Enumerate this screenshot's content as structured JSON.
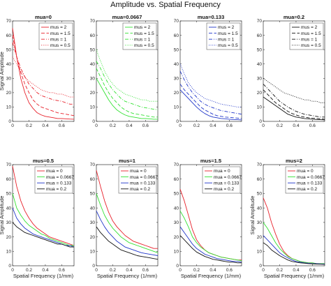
{
  "figure_title": "Amplitude vs. Spatial Frequency",
  "colors": {
    "red": "#e8202a",
    "green": "#33e233",
    "blue": "#1f35c9",
    "black": "#111111"
  },
  "chart_data": [
    {
      "type": "line",
      "title": "mua=0",
      "xlabel": "",
      "ylabel": "Signal Amplitude",
      "xlim": [
        0,
        0.75
      ],
      "ylim": [
        0,
        70
      ],
      "xticks": [
        0,
        0.2,
        0.4,
        0.6
      ],
      "yticks": [
        0,
        10,
        20,
        30,
        40,
        50,
        60,
        70
      ],
      "legend_position": "top-right",
      "x": [
        0,
        0.05,
        0.1,
        0.15,
        0.2,
        0.25,
        0.3,
        0.35,
        0.4,
        0.45,
        0.5,
        0.55,
        0.6,
        0.65,
        0.7,
        0.75
      ],
      "series": [
        {
          "name": "mus = 2",
          "color": "red",
          "dash": "solid",
          "values": [
            65,
            45,
            30,
            20,
            13,
            9,
            6,
            4.5,
            3.5,
            3,
            2.5,
            2,
            2,
            1.8,
            1.6,
            1.5
          ]
        },
        {
          "name": "mus = 1.5",
          "color": "red",
          "dash": "dashed",
          "values": [
            60,
            45,
            34,
            26,
            20,
            15,
            12,
            10,
            9,
            8,
            7,
            6,
            5.5,
            5,
            4.5,
            4
          ]
        },
        {
          "name": "mus = 1",
          "color": "red",
          "dash": "dashdot",
          "values": [
            55,
            45,
            37,
            31,
            26,
            23,
            20,
            18,
            17,
            16,
            15,
            14.5,
            14,
            13,
            12,
            12
          ]
        },
        {
          "name": "mus = 0.5",
          "color": "red",
          "dash": "dotted",
          "values": [
            45,
            40,
            35,
            31,
            28,
            26,
            24,
            22,
            21,
            20,
            20,
            19,
            19,
            18,
            17,
            17
          ]
        }
      ]
    },
    {
      "type": "line",
      "title": "mua=0.0667",
      "xlabel": "",
      "ylabel": "",
      "xlim": [
        0,
        0.75
      ],
      "ylim": [
        0,
        70
      ],
      "xticks": [
        0,
        0.2,
        0.4,
        0.6
      ],
      "yticks": [
        0,
        10,
        20,
        30,
        40,
        50,
        60,
        70
      ],
      "legend_position": "top-right",
      "x": [
        0,
        0.05,
        0.1,
        0.15,
        0.2,
        0.25,
        0.3,
        0.35,
        0.4,
        0.45,
        0.5,
        0.55,
        0.6,
        0.65,
        0.7,
        0.75
      ],
      "series": [
        {
          "name": "mus = 2",
          "color": "green",
          "dash": "solid",
          "values": [
            30,
            25,
            20,
            15,
            11,
            8,
            6,
            4.5,
            3.5,
            3,
            2.5,
            2,
            2,
            1.8,
            1.5,
            1.5
          ]
        },
        {
          "name": "mus = 1.5",
          "color": "green",
          "dash": "dashed",
          "values": [
            37,
            31,
            25,
            20,
            16,
            13,
            10,
            8,
            6.5,
            5.5,
            5,
            4.5,
            4,
            3.5,
            3,
            3
          ]
        },
        {
          "name": "mus = 1",
          "color": "green",
          "dash": "dashdot",
          "values": [
            42,
            37,
            31,
            26,
            22,
            19,
            16,
            14,
            13,
            12,
            11,
            10,
            9.5,
            9,
            8.5,
            8
          ]
        },
        {
          "name": "mus = 0.5",
          "color": "green",
          "dash": "dotted",
          "values": [
            50,
            42,
            35,
            30,
            26,
            23,
            21,
            19,
            18,
            17,
            16,
            15,
            15,
            14,
            14,
            14
          ]
        }
      ]
    },
    {
      "type": "line",
      "title": "mua=0.133",
      "xlabel": "",
      "ylabel": "",
      "xlim": [
        0,
        0.75
      ],
      "ylim": [
        0,
        70
      ],
      "xticks": [
        0,
        0.2,
        0.4,
        0.6
      ],
      "yticks": [
        0,
        10,
        20,
        30,
        40,
        50,
        60,
        70
      ],
      "legend_position": "top-right",
      "x": [
        0,
        0.05,
        0.1,
        0.15,
        0.2,
        0.25,
        0.3,
        0.35,
        0.4,
        0.45,
        0.5,
        0.55,
        0.6,
        0.65,
        0.7,
        0.75
      ],
      "series": [
        {
          "name": "mus = 2",
          "color": "blue",
          "dash": "solid",
          "values": [
            22,
            19,
            16,
            13,
            10,
            7.5,
            5.5,
            4,
            3,
            2.5,
            2,
            1.8,
            1.5,
            1.3,
            1.2,
            1
          ]
        },
        {
          "name": "mus = 1.5",
          "color": "blue",
          "dash": "dashed",
          "values": [
            26,
            22,
            19,
            16,
            13,
            10,
            8,
            6.5,
            5,
            4,
            3.5,
            3,
            2.8,
            2.5,
            2.3,
            2
          ]
        },
        {
          "name": "mus = 1",
          "color": "blue",
          "dash": "dashdot",
          "values": [
            35,
            29,
            24,
            20,
            17,
            14,
            12,
            10.5,
            9.5,
            8.5,
            7.5,
            7,
            6.5,
            6,
            5.5,
            5
          ]
        },
        {
          "name": "mus = 0.5",
          "color": "blue",
          "dash": "dotted",
          "values": [
            40,
            33,
            27,
            23,
            20,
            18,
            16,
            15,
            14,
            13,
            12,
            11.5,
            11,
            10.5,
            10,
            10
          ]
        }
      ]
    },
    {
      "type": "line",
      "title": "mua=0.2",
      "xlabel": "",
      "ylabel": "",
      "xlim": [
        0,
        0.75
      ],
      "ylim": [
        0,
        70
      ],
      "xticks": [
        0,
        0.2,
        0.4,
        0.6
      ],
      "yticks": [
        0,
        10,
        20,
        30,
        40,
        50,
        60,
        70
      ],
      "legend_position": "top-right",
      "x": [
        0,
        0.05,
        0.1,
        0.15,
        0.2,
        0.25,
        0.3,
        0.35,
        0.4,
        0.45,
        0.5,
        0.55,
        0.6,
        0.65,
        0.7,
        0.75
      ],
      "series": [
        {
          "name": "mus = 2",
          "color": "black",
          "dash": "solid",
          "values": [
            17,
            15,
            13,
            11,
            9,
            7,
            5,
            4,
            3,
            2.5,
            2,
            1.8,
            1.5,
            1.3,
            1.2,
            1
          ]
        },
        {
          "name": "mus = 1.5",
          "color": "black",
          "dash": "dashed",
          "values": [
            22,
            19,
            16,
            13,
            11,
            9,
            7,
            5.5,
            4.5,
            3.5,
            3,
            2.5,
            2.2,
            2,
            1.8,
            1.5
          ]
        },
        {
          "name": "mus = 1",
          "color": "black",
          "dash": "dashdot",
          "values": [
            26,
            23,
            20,
            17,
            14,
            12,
            10,
            8.5,
            7,
            6,
            5,
            4.5,
            4,
            3.5,
            3,
            3
          ]
        },
        {
          "name": "mus = 0.5",
          "color": "black",
          "dash": "dotted",
          "values": [
            30,
            28,
            26,
            24,
            22,
            20,
            19,
            18,
            17,
            16,
            15,
            15,
            14,
            14,
            13,
            13
          ]
        }
      ]
    },
    {
      "type": "line",
      "title": "mus=0.5",
      "xlabel": "Spatial Frequency (1/mm)",
      "ylabel": "Signal Amplitude",
      "xlim": [
        0,
        0.75
      ],
      "ylim": [
        0,
        70
      ],
      "xticks": [
        0,
        0.2,
        0.4,
        0.6
      ],
      "yticks": [
        0,
        10,
        20,
        30,
        40,
        50,
        60,
        70
      ],
      "legend_position": "top-right",
      "x": [
        0,
        0.05,
        0.1,
        0.15,
        0.2,
        0.25,
        0.3,
        0.35,
        0.4,
        0.45,
        0.5,
        0.55,
        0.6,
        0.65,
        0.7,
        0.75
      ],
      "series": [
        {
          "name": "mua = 0",
          "color": "red",
          "dash": "solid",
          "values": [
            69,
            55,
            45,
            38,
            33,
            29,
            26,
            24,
            22,
            20,
            19,
            18,
            17,
            16,
            15,
            14
          ]
        },
        {
          "name": "mua = 0.0667",
          "color": "green",
          "dash": "solid",
          "values": [
            50,
            40,
            35,
            31,
            28,
            26,
            24,
            22,
            21,
            19,
            18,
            17,
            16,
            15,
            14,
            14
          ]
        },
        {
          "name": "mua = 0.133",
          "color": "blue",
          "dash": "solid",
          "values": [
            40,
            33,
            29,
            26,
            24,
            22,
            21,
            20,
            19,
            18,
            17,
            16,
            15,
            14,
            14,
            13
          ]
        },
        {
          "name": "mua = 0.2",
          "color": "black",
          "dash": "solid",
          "values": [
            30,
            27,
            25,
            23,
            22,
            21,
            20,
            19,
            18,
            17,
            16,
            15,
            15,
            14,
            13,
            13
          ]
        }
      ]
    },
    {
      "type": "line",
      "title": "mus=1",
      "xlabel": "Spatial Frequency (1/mm)",
      "ylabel": "",
      "xlim": [
        0,
        0.75
      ],
      "ylim": [
        0,
        70
      ],
      "xticks": [
        0,
        0.2,
        0.4,
        0.6
      ],
      "yticks": [
        0,
        10,
        20,
        30,
        40,
        50,
        60,
        70
      ],
      "legend_position": "top-right",
      "x": [
        0,
        0.05,
        0.1,
        0.15,
        0.2,
        0.25,
        0.3,
        0.35,
        0.4,
        0.45,
        0.5,
        0.55,
        0.6,
        0.65,
        0.7,
        0.75
      ],
      "series": [
        {
          "name": "mua = 0",
          "color": "red",
          "dash": "solid",
          "values": [
            66,
            55,
            45,
            37,
            31,
            27,
            24,
            21,
            19,
            17,
            16,
            15,
            14,
            13,
            12,
            12
          ]
        },
        {
          "name": "mua = 0.0667",
          "color": "green",
          "dash": "solid",
          "values": [
            50,
            42,
            35,
            30,
            26,
            23,
            20,
            18,
            16,
            15,
            14,
            13,
            12,
            11,
            10,
            9
          ]
        },
        {
          "name": "mua = 0.133",
          "color": "blue",
          "dash": "solid",
          "values": [
            38,
            32,
            27,
            23,
            20,
            17,
            15,
            13,
            12,
            11,
            10,
            9,
            8.5,
            8,
            7.5,
            7
          ]
        },
        {
          "name": "mua = 0.2",
          "color": "black",
          "dash": "solid",
          "values": [
            27,
            23,
            20,
            17,
            15,
            13,
            11,
            10,
            9,
            8,
            7,
            6.5,
            6,
            5.5,
            5,
            4.5
          ]
        }
      ]
    },
    {
      "type": "line",
      "title": "mus=1.5",
      "xlabel": "Spatial Frequency (1/mm)",
      "ylabel": "",
      "xlim": [
        0,
        0.75
      ],
      "ylim": [
        0,
        70
      ],
      "xticks": [
        0,
        0.2,
        0.4,
        0.6
      ],
      "yticks": [
        0,
        10,
        20,
        30,
        40,
        50,
        60,
        70
      ],
      "legend_position": "top-right",
      "x": [
        0,
        0.05,
        0.1,
        0.15,
        0.2,
        0.25,
        0.3,
        0.35,
        0.4,
        0.45,
        0.5,
        0.55,
        0.6,
        0.65,
        0.7,
        0.75
      ],
      "series": [
        {
          "name": "mua = 0",
          "color": "red",
          "dash": "solid",
          "values": [
            53,
            45,
            35,
            25,
            18,
            14,
            11,
            9,
            8,
            7,
            6,
            5.5,
            5,
            4.5,
            4,
            4
          ]
        },
        {
          "name": "mua = 0.0667",
          "color": "green",
          "dash": "solid",
          "values": [
            38,
            33,
            27,
            20,
            16,
            13,
            11,
            9,
            8,
            7,
            6,
            5.5,
            5,
            4.5,
            4,
            3.5
          ]
        },
        {
          "name": "mua = 0.133",
          "color": "blue",
          "dash": "solid",
          "values": [
            27,
            23,
            19,
            15,
            12,
            10,
            8,
            7,
            6,
            5,
            4.5,
            4,
            3.5,
            3,
            3,
            2.5
          ]
        },
        {
          "name": "mua = 0.2",
          "color": "black",
          "dash": "solid",
          "values": [
            21,
            18,
            15,
            12,
            9.5,
            8,
            6.5,
            5.5,
            4.5,
            4,
            3.5,
            3,
            2.5,
            2.5,
            2,
            2
          ]
        }
      ]
    },
    {
      "type": "line",
      "title": "mus=2",
      "xlabel": "Spatial Frequency (1/mm)",
      "ylabel": "Signal Amplitude",
      "xlim": [
        0,
        0.75
      ],
      "ylim": [
        0,
        70
      ],
      "xticks": [
        0,
        0.2,
        0.4,
        0.6
      ],
      "yticks": [
        0,
        10,
        20,
        30,
        40,
        50,
        60,
        70
      ],
      "legend_position": "top-right",
      "x": [
        0,
        0.05,
        0.1,
        0.15,
        0.2,
        0.25,
        0.3,
        0.35,
        0.4,
        0.45,
        0.5,
        0.55,
        0.6,
        0.65,
        0.7,
        0.75
      ],
      "series": [
        {
          "name": "mua = 0",
          "color": "red",
          "dash": "solid",
          "values": [
            47,
            40,
            30,
            22,
            15,
            10,
            7,
            5,
            4,
            3,
            2.5,
            2,
            2,
            1.5,
            1.5,
            1.5
          ]
        },
        {
          "name": "mua = 0.0667",
          "color": "green",
          "dash": "solid",
          "values": [
            30,
            26,
            21,
            16,
            12,
            9,
            6.5,
            5,
            4,
            3,
            2.5,
            2,
            2,
            1.5,
            1.5,
            1.5
          ]
        },
        {
          "name": "mua = 0.133",
          "color": "blue",
          "dash": "solid",
          "values": [
            21,
            18,
            15,
            12,
            9,
            7,
            5.5,
            4,
            3,
            2.5,
            2,
            1.8,
            1.5,
            1.5,
            1.3,
            1.2
          ]
        },
        {
          "name": "mua = 0.2",
          "color": "black",
          "dash": "solid",
          "values": [
            16,
            14,
            11,
            9,
            7,
            5.5,
            4,
            3,
            2.5,
            2,
            1.8,
            1.5,
            1.3,
            1.2,
            1.1,
            1
          ]
        }
      ]
    }
  ]
}
